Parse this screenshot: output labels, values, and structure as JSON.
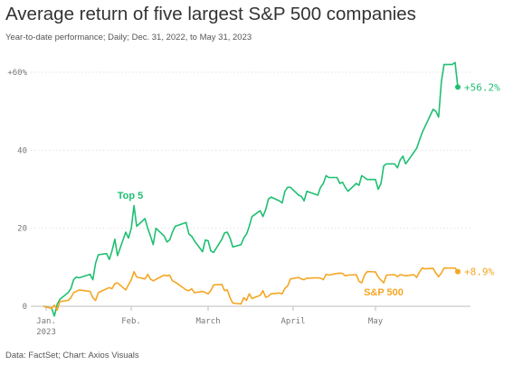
{
  "header": {
    "title": "Average return of five largest S&P 500 companies",
    "subtitle": "Year-to-date performance; Daily; Dec. 31, 2022, to May 31, 2023"
  },
  "footer": {
    "source": "Data: FactSet; Chart: Axios Visuals"
  },
  "colors": {
    "top5": "#1fbf72",
    "sp500": "#f5a623",
    "grid": "#e2e2e2",
    "text": "#777777"
  },
  "chart_data": {
    "type": "line",
    "title": "Average return of five largest S&P 500 companies",
    "subtitle": "Year-to-date performance; Daily; Dec. 31, 2022, to May 31, 2023",
    "xlabel": "",
    "ylabel": "",
    "ylim": [
      0,
      60
    ],
    "xlim": [
      "2022-12-31",
      "2023-05-31"
    ],
    "grid": true,
    "y_ticks": [
      {
        "value": 0,
        "label": "0"
      },
      {
        "value": 20,
        "label": "20"
      },
      {
        "value": 40,
        "label": "40"
      },
      {
        "value": 60,
        "label": "+60%"
      }
    ],
    "x_ticks": [
      {
        "date": "2023-01-01",
        "label": "Jan.",
        "label2": "2023"
      },
      {
        "date": "2023-02-01",
        "label": "Feb."
      },
      {
        "date": "2023-03-01",
        "label": "March"
      },
      {
        "date": "2023-04-01",
        "label": "April"
      },
      {
        "date": "2023-05-01",
        "label": "May"
      }
    ],
    "series": [
      {
        "name": "Top 5",
        "color": "#1fbf72",
        "end_label": "+56.2%",
        "points": [
          [
            "2022-12-31",
            0
          ],
          [
            "2023-01-03",
            -0.5
          ],
          [
            "2023-01-04",
            -2.5
          ],
          [
            "2023-01-05",
            0.5
          ],
          [
            "2023-01-06",
            1.8
          ],
          [
            "2023-01-09",
            3.5
          ],
          [
            "2023-01-10",
            4.5
          ],
          [
            "2023-01-11",
            6.8
          ],
          [
            "2023-01-12",
            7.5
          ],
          [
            "2023-01-13",
            7.3
          ],
          [
            "2023-01-17",
            8.2
          ],
          [
            "2023-01-18",
            6.8
          ],
          [
            "2023-01-19",
            11.0
          ],
          [
            "2023-01-20",
            13.2
          ],
          [
            "2023-01-23",
            13.5
          ],
          [
            "2023-01-24",
            12.0
          ],
          [
            "2023-01-25",
            14.2
          ],
          [
            "2023-01-26",
            17.2
          ],
          [
            "2023-01-27",
            13.0
          ],
          [
            "2023-01-30",
            19.0
          ],
          [
            "2023-01-31",
            17.5
          ],
          [
            "2023-02-01",
            20.0
          ],
          [
            "2023-02-02",
            25.8
          ],
          [
            "2023-02-03",
            20.5
          ],
          [
            "2023-02-06",
            22.5
          ],
          [
            "2023-02-07",
            20.0
          ],
          [
            "2023-02-08",
            18.0
          ],
          [
            "2023-02-09",
            15.8
          ],
          [
            "2023-02-10",
            20.0
          ],
          [
            "2023-02-13",
            18.0
          ],
          [
            "2023-02-14",
            16.5
          ],
          [
            "2023-02-15",
            17.0
          ],
          [
            "2023-02-16",
            19.0
          ],
          [
            "2023-02-17",
            20.5
          ],
          [
            "2023-02-21",
            21.5
          ],
          [
            "2023-02-22",
            18.5
          ],
          [
            "2023-02-23",
            18.0
          ],
          [
            "2023-02-24",
            16.8
          ],
          [
            "2023-02-27",
            14.0
          ],
          [
            "2023-02-28",
            17.0
          ],
          [
            "2023-03-01",
            16.8
          ],
          [
            "2023-03-02",
            14.2
          ],
          [
            "2023-03-03",
            13.8
          ],
          [
            "2023-03-06",
            17.2
          ],
          [
            "2023-03-07",
            18.8
          ],
          [
            "2023-03-08",
            19.0
          ],
          [
            "2023-03-09",
            17.5
          ],
          [
            "2023-03-10",
            15.2
          ],
          [
            "2023-03-13",
            15.8
          ],
          [
            "2023-03-14",
            17.5
          ],
          [
            "2023-03-15",
            18.5
          ],
          [
            "2023-03-16",
            20.5
          ],
          [
            "2023-03-17",
            23.0
          ],
          [
            "2023-03-20",
            24.5
          ],
          [
            "2023-03-21",
            23.0
          ],
          [
            "2023-03-22",
            24.8
          ],
          [
            "2023-03-23",
            27.5
          ],
          [
            "2023-03-24",
            28.0
          ],
          [
            "2023-03-27",
            27.0
          ],
          [
            "2023-03-28",
            26.5
          ],
          [
            "2023-03-29",
            29.5
          ],
          [
            "2023-03-30",
            30.5
          ],
          [
            "2023-03-31",
            30.5
          ],
          [
            "2023-04-03",
            28.5
          ],
          [
            "2023-04-04",
            28.2
          ],
          [
            "2023-04-05",
            27.0
          ],
          [
            "2023-04-06",
            29.5
          ],
          [
            "2023-04-10",
            28.5
          ],
          [
            "2023-04-11",
            30.5
          ],
          [
            "2023-04-12",
            31.5
          ],
          [
            "2023-04-13",
            33.5
          ],
          [
            "2023-04-14",
            33.0
          ],
          [
            "2023-04-17",
            33.0
          ],
          [
            "2023-04-18",
            31.5
          ],
          [
            "2023-04-19",
            31.8
          ],
          [
            "2023-04-20",
            30.5
          ],
          [
            "2023-04-21",
            29.5
          ],
          [
            "2023-04-24",
            31.5
          ],
          [
            "2023-04-25",
            31.0
          ],
          [
            "2023-04-26",
            33.5
          ],
          [
            "2023-04-27",
            33.0
          ],
          [
            "2023-04-28",
            32.5
          ],
          [
            "2023-05-01",
            32.5
          ],
          [
            "2023-05-02",
            30.0
          ],
          [
            "2023-05-03",
            31.5
          ],
          [
            "2023-05-04",
            36.0
          ],
          [
            "2023-05-05",
            36.5
          ],
          [
            "2023-05-08",
            36.5
          ],
          [
            "2023-05-09",
            35.5
          ],
          [
            "2023-05-10",
            37.5
          ],
          [
            "2023-05-11",
            38.5
          ],
          [
            "2023-05-12",
            36.5
          ],
          [
            "2023-05-15",
            39.5
          ],
          [
            "2023-05-16",
            40.5
          ],
          [
            "2023-05-17",
            42.5
          ],
          [
            "2023-05-18",
            44.5
          ],
          [
            "2023-05-19",
            46.0
          ],
          [
            "2023-05-22",
            50.5
          ],
          [
            "2023-05-23",
            50.0
          ],
          [
            "2023-05-24",
            48.5
          ],
          [
            "2023-05-25",
            57.5
          ],
          [
            "2023-05-26",
            62.0
          ],
          [
            "2023-05-29",
            62.0
          ],
          [
            "2023-05-30",
            62.5
          ],
          [
            "2023-05-31",
            56.2
          ]
        ]
      },
      {
        "name": "S&P 500",
        "color": "#f5a623",
        "end_label": "+8.9%",
        "points": [
          [
            "2022-12-31",
            0
          ],
          [
            "2023-01-03",
            -0.5
          ],
          [
            "2023-01-04",
            0.3
          ],
          [
            "2023-01-05",
            -1.0
          ],
          [
            "2023-01-06",
            1.2
          ],
          [
            "2023-01-09",
            1.5
          ],
          [
            "2023-01-10",
            2.2
          ],
          [
            "2023-01-11",
            3.5
          ],
          [
            "2023-01-12",
            3.8
          ],
          [
            "2023-01-13",
            4.2
          ],
          [
            "2023-01-17",
            3.8
          ],
          [
            "2023-01-18",
            2.2
          ],
          [
            "2023-01-19",
            1.5
          ],
          [
            "2023-01-20",
            3.5
          ],
          [
            "2023-01-23",
            4.5
          ],
          [
            "2023-01-24",
            4.8
          ],
          [
            "2023-01-25",
            4.5
          ],
          [
            "2023-01-26",
            5.8
          ],
          [
            "2023-01-27",
            6.0
          ],
          [
            "2023-01-30",
            4.2
          ],
          [
            "2023-01-31",
            5.5
          ],
          [
            "2023-02-01",
            6.8
          ],
          [
            "2023-02-02",
            8.9
          ],
          [
            "2023-02-03",
            7.5
          ],
          [
            "2023-02-06",
            7.0
          ],
          [
            "2023-02-07",
            8.2
          ],
          [
            "2023-02-08",
            7.0
          ],
          [
            "2023-02-09",
            6.5
          ],
          [
            "2023-02-10",
            6.9
          ],
          [
            "2023-02-13",
            8.0
          ],
          [
            "2023-02-14",
            7.8
          ],
          [
            "2023-02-15",
            8.0
          ],
          [
            "2023-02-16",
            6.5
          ],
          [
            "2023-02-17",
            6.2
          ],
          [
            "2023-02-21",
            4.2
          ],
          [
            "2023-02-22",
            4.0
          ],
          [
            "2023-02-23",
            4.5
          ],
          [
            "2023-02-24",
            3.5
          ],
          [
            "2023-02-27",
            3.8
          ],
          [
            "2023-02-28",
            3.5
          ],
          [
            "2023-03-01",
            3.2
          ],
          [
            "2023-03-02",
            4.0
          ],
          [
            "2023-03-03",
            5.5
          ],
          [
            "2023-03-06",
            5.6
          ],
          [
            "2023-03-07",
            4.0
          ],
          [
            "2023-03-08",
            4.2
          ],
          [
            "2023-03-09",
            2.2
          ],
          [
            "2023-03-10",
            0.8
          ],
          [
            "2023-03-13",
            0.6
          ],
          [
            "2023-03-14",
            2.2
          ],
          [
            "2023-03-15",
            1.5
          ],
          [
            "2023-03-16",
            3.2
          ],
          [
            "2023-03-17",
            2.0
          ],
          [
            "2023-03-20",
            2.8
          ],
          [
            "2023-03-21",
            4.0
          ],
          [
            "2023-03-22",
            2.3
          ],
          [
            "2023-03-23",
            2.6
          ],
          [
            "2023-03-24",
            3.2
          ],
          [
            "2023-03-27",
            3.4
          ],
          [
            "2023-03-28",
            3.2
          ],
          [
            "2023-03-29",
            4.6
          ],
          [
            "2023-03-30",
            5.2
          ],
          [
            "2023-03-31",
            7.0
          ],
          [
            "2023-04-03",
            7.4
          ],
          [
            "2023-04-04",
            7.0
          ],
          [
            "2023-04-05",
            6.8
          ],
          [
            "2023-04-06",
            7.2
          ],
          [
            "2023-04-10",
            7.3
          ],
          [
            "2023-04-11",
            7.2
          ],
          [
            "2023-04-12",
            6.8
          ],
          [
            "2023-04-13",
            8.2
          ],
          [
            "2023-04-14",
            8.0
          ],
          [
            "2023-04-17",
            8.4
          ],
          [
            "2023-04-18",
            8.5
          ],
          [
            "2023-04-19",
            8.4
          ],
          [
            "2023-04-20",
            7.8
          ],
          [
            "2023-04-21",
            8.0
          ],
          [
            "2023-04-24",
            8.1
          ],
          [
            "2023-04-25",
            6.4
          ],
          [
            "2023-04-26",
            6.0
          ],
          [
            "2023-04-27",
            8.0
          ],
          [
            "2023-04-28",
            8.9
          ],
          [
            "2023-05-01",
            8.8
          ],
          [
            "2023-05-02",
            7.5
          ],
          [
            "2023-05-03",
            6.7
          ],
          [
            "2023-05-04",
            6.0
          ],
          [
            "2023-05-05",
            8.0
          ],
          [
            "2023-05-08",
            8.1
          ],
          [
            "2023-05-09",
            7.6
          ],
          [
            "2023-05-10",
            8.1
          ],
          [
            "2023-05-11",
            8.0
          ],
          [
            "2023-05-12",
            7.8
          ],
          [
            "2023-05-15",
            8.1
          ],
          [
            "2023-05-16",
            7.4
          ],
          [
            "2023-05-17",
            8.7
          ],
          [
            "2023-05-18",
            9.8
          ],
          [
            "2023-05-19",
            9.6
          ],
          [
            "2023-05-22",
            9.7
          ],
          [
            "2023-05-23",
            8.5
          ],
          [
            "2023-05-24",
            7.6
          ],
          [
            "2023-05-25",
            8.5
          ],
          [
            "2023-05-26",
            9.8
          ],
          [
            "2023-05-29",
            9.8
          ],
          [
            "2023-05-30",
            9.8
          ],
          [
            "2023-05-31",
            8.9
          ]
        ]
      }
    ]
  }
}
